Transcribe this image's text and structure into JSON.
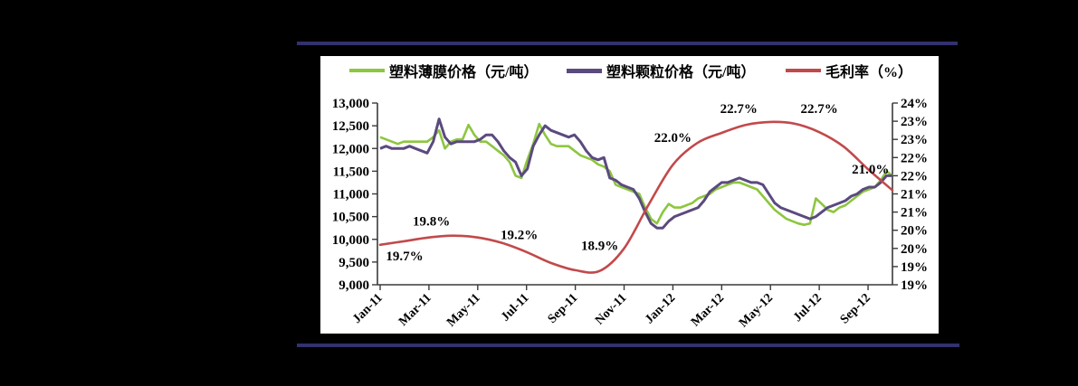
{
  "page": {
    "background": "#000000",
    "separator_color": "#32326E",
    "panel_color": "#ffffff",
    "axis_color": "#3a3a3a",
    "text_color": "#000000"
  },
  "chart_data": {
    "type": "line",
    "title": "",
    "legend_position": "top",
    "grid": false,
    "legend": [
      {
        "label": "塑料薄膜价格（元/吨）",
        "color": "#8DC63F"
      },
      {
        "label": "塑料颗粒价格（元/吨）",
        "color": "#5B4A7E"
      },
      {
        "label": "毛利率（%）",
        "color": "#C2494B"
      }
    ],
    "x_axis": {
      "tick_labels": [
        "Jan-11",
        "Mar-11",
        "May-11",
        "Jul-11",
        "Sep-11",
        "Nov-11",
        "Jan-12",
        "Mar-12",
        "May-12",
        "Jul-12",
        "Sep-12"
      ],
      "months_total": 22,
      "label_rotation_deg": -45
    },
    "left_axis": {
      "min": 9000,
      "max": 13000,
      "step": 500,
      "tick_labels": [
        "13,000",
        "12,500",
        "12,000",
        "11,500",
        "11,000",
        "10,500",
        "10,000",
        "9,500",
        "9,000"
      ]
    },
    "right_axis": {
      "min": 19,
      "max": 24,
      "step": 0.5,
      "tick_labels": [
        "24%",
        "23%",
        "23%",
        "22%",
        "22%",
        "21%",
        "21%",
        "20%",
        "20%",
        "19%",
        "19%"
      ]
    },
    "series": [
      {
        "name": "塑料薄膜价格（元/吨）",
        "axis": "left",
        "color": "#8DC63F",
        "width": 2.6,
        "smooth": false,
        "values": [
          12250,
          12200,
          12150,
          12100,
          12150,
          12150,
          12150,
          12150,
          12150,
          12250,
          12400,
          12000,
          12150,
          12200,
          12200,
          12520,
          12300,
          12150,
          12150,
          12050,
          11950,
          11850,
          11700,
          11400,
          11350,
          11750,
          12100,
          12540,
          12300,
          12100,
          12050,
          12050,
          12050,
          11950,
          11850,
          11800,
          11750,
          11650,
          11600,
          11500,
          11200,
          11150,
          11100,
          11050,
          11000,
          10700,
          10450,
          10350,
          10600,
          10780,
          10700,
          10700,
          10750,
          10800,
          10900,
          10950,
          11000,
          11100,
          11150,
          11200,
          11250,
          11250,
          11200,
          11150,
          11100,
          10950,
          10800,
          10650,
          10550,
          10450,
          10400,
          10350,
          10320,
          10350,
          10900,
          10780,
          10650,
          10600,
          10700,
          10750,
          10850,
          10950,
          11050,
          11100,
          11150,
          11300,
          11500,
          11400
        ]
      },
      {
        "name": "塑料颗粒价格（元/吨）",
        "axis": "left",
        "color": "#5B4A7E",
        "width": 3.0,
        "smooth": false,
        "values": [
          12000,
          12050,
          12000,
          12000,
          12000,
          12050,
          12000,
          11950,
          11900,
          12150,
          12650,
          12250,
          12100,
          12150,
          12150,
          12150,
          12150,
          12200,
          12300,
          12300,
          12150,
          11950,
          11800,
          11700,
          11400,
          11550,
          12050,
          12300,
          12500,
          12400,
          12350,
          12300,
          12250,
          12300,
          12150,
          11950,
          11800,
          11750,
          11800,
          11350,
          11300,
          11200,
          11150,
          11100,
          10900,
          10600,
          10350,
          10250,
          10250,
          10400,
          10500,
          10550,
          10600,
          10650,
          10700,
          10850,
          11050,
          11150,
          11250,
          11250,
          11300,
          11350,
          11300,
          11250,
          11250,
          11200,
          11000,
          10800,
          10700,
          10650,
          10600,
          10550,
          10500,
          10450,
          10500,
          10600,
          10700,
          10750,
          10800,
          10850,
          10950,
          11000,
          11100,
          11150,
          11150,
          11250,
          11400,
          11400
        ]
      },
      {
        "name": "毛利率（%）",
        "axis": "right",
        "color": "#C2494B",
        "width": 2.6,
        "smooth": true,
        "values": [
          20.1,
          20.2,
          20.3,
          20.35,
          20.3,
          20.15,
          19.9,
          19.6,
          19.4,
          19.38,
          20.0,
          21.2,
          22.3,
          22.9,
          23.18,
          23.4,
          23.48,
          23.43,
          23.2,
          22.8,
          22.18,
          21.6
        ]
      }
    ],
    "annotations": [
      {
        "text": "19.7%",
        "month": 1.0,
        "value": 19.8
      },
      {
        "text": "19.8%",
        "month": 2.1,
        "value": 20.75
      },
      {
        "text": "19.2%",
        "month": 5.7,
        "value": 20.38
      },
      {
        "text": "18.9%",
        "month": 9.0,
        "value": 20.08
      },
      {
        "text": "22.0%",
        "month": 12.0,
        "value": 23.05
      },
      {
        "text": "22.7%",
        "month": 14.7,
        "value": 23.85
      },
      {
        "text": "22.7%",
        "month": 18.0,
        "value": 23.85
      },
      {
        "text": "21.0%",
        "month": 20.1,
        "value": 22.18
      }
    ]
  }
}
